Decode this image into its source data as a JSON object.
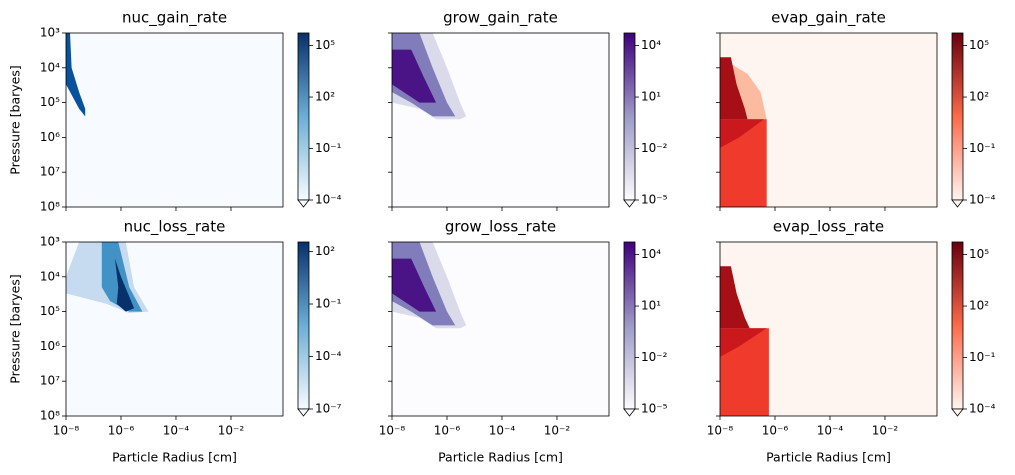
{
  "chart_data": [
    {
      "type": "contour",
      "title": "nuc_gain_rate",
      "ylabel": "Pressure [baryes]",
      "log": true,
      "xlim": [
        1e-08,
        0.78
      ],
      "ylim": [
        100000000,
        1000
      ],
      "xticks": [
        1e-08,
        1e-06,
        0.0001,
        0.01
      ],
      "yticks": [
        {
          "value": 1000,
          "label": "10³"
        },
        {
          "value": 10000,
          "label": "10⁴"
        },
        {
          "value": 100000,
          "label": "10⁵"
        },
        {
          "value": 1000000,
          "label": "10⁶"
        },
        {
          "value": 10000000,
          "label": "10⁷"
        },
        {
          "value": 100000000,
          "label": "10⁸"
        }
      ],
      "background": "#f7fbff",
      "cmap": [
        "#f7fbff",
        "#6baed6",
        "#08306b"
      ],
      "clim": [
        0.0001,
        540000
      ],
      "cticks": [
        {
          "value": 0.0001,
          "label": "10⁻⁴"
        },
        {
          "value": 0.1,
          "label": "10⁻¹"
        },
        {
          "value": 100,
          "label": "10²"
        },
        {
          "value": 100000,
          "label": "10⁵"
        }
      ],
      "regions": [
        {
          "value": 10000,
          "color": "#08519c",
          "x": [
            1e-08,
            1.4e-08,
            1.6e-08,
            3e-08,
            5e-08,
            5e-08,
            3e-08,
            1e-08
          ],
          "y": [
            1000,
            1000,
            10000,
            50000,
            150000,
            250000,
            150000,
            30000
          ]
        }
      ]
    },
    {
      "type": "contour",
      "title": "grow_gain_rate",
      "log": true,
      "xlim": [
        1e-08,
        0.78
      ],
      "ylim": [
        100000000,
        1000
      ],
      "xticks": [
        1e-08,
        1e-06,
        0.0001,
        0.01
      ],
      "yticks": [
        1000,
        10000,
        100000,
        1000000,
        10000000,
        100000000
      ],
      "background": "#fcfbfd",
      "cmap": [
        "#fcfbfd",
        "#9e9ac8",
        "#3f007d"
      ],
      "clim": [
        1e-05,
        54000
      ],
      "cticks": [
        {
          "value": 1e-05,
          "label": "10⁻⁵"
        },
        {
          "value": 0.01,
          "label": "10⁻²"
        },
        {
          "value": 10,
          "label": "10¹"
        },
        {
          "value": 10000,
          "label": "10⁴"
        }
      ],
      "regions": [
        {
          "value": 10,
          "color": "#dadaeb",
          "x": [
            1e-08,
            3e-07,
            1e-06,
            3e-06,
            5e-06,
            3e-06,
            4e-07,
            1e-07,
            1e-08
          ],
          "y": [
            1000,
            1000,
            10000,
            100000,
            250000,
            300000,
            300000,
            150000,
            100000
          ]
        },
        {
          "value": 1000,
          "color": "#807dba",
          "x": [
            1e-08,
            1e-07,
            3e-07,
            1e-06,
            2e-06,
            3e-07,
            5e-08,
            1e-08
          ],
          "y": [
            1000,
            1000,
            10000,
            100000,
            250000,
            250000,
            100000,
            50000
          ]
        },
        {
          "value": 10000,
          "color": "#4a1486",
          "x": [
            1e-08,
            5e-08,
            1.5e-07,
            4e-07,
            1e-07,
            1e-08
          ],
          "y": [
            3000,
            3000,
            20000,
            100000,
            100000,
            30000
          ]
        }
      ]
    },
    {
      "type": "contour",
      "title": "evap_gain_rate",
      "log": true,
      "xlim": [
        1e-08,
        0.78
      ],
      "ylim": [
        100000000,
        1000
      ],
      "xticks": [
        1e-08,
        1e-06,
        0.0001,
        0.01
      ],
      "yticks": [
        1000,
        10000,
        100000,
        1000000,
        10000000,
        100000000
      ],
      "background": "#fff5f0",
      "cmap": [
        "#fff5f0",
        "#fb6a4a",
        "#67000d"
      ],
      "clim": [
        0.0001,
        540000
      ],
      "cticks": [
        {
          "value": 0.0001,
          "label": "10⁻⁴"
        },
        {
          "value": 0.1,
          "label": "10⁻¹"
        },
        {
          "value": 100,
          "label": "10²"
        },
        {
          "value": 100000,
          "label": "10⁵"
        }
      ],
      "regions": [
        {
          "value": 10,
          "color": "#fcbba1",
          "x": [
            1e-08,
            1e-07,
            3e-07,
            5e-07,
            1e-08
          ],
          "y": [
            5000,
            15000,
            50000,
            300000,
            300000
          ]
        },
        {
          "value": 1000,
          "color": "#ef3b2c",
          "x": [
            1e-08,
            5e-07,
            5e-07,
            1e-08
          ],
          "y": [
            300000,
            300000,
            100000000,
            100000000
          ]
        },
        {
          "value": 10000,
          "color": "#cb181d",
          "x": [
            1e-08,
            4e-07,
            5e-08,
            1e-08
          ],
          "y": [
            300000,
            300000,
            1000000,
            2000000
          ]
        },
        {
          "value": 100000,
          "color": "#a50f15",
          "x": [
            1e-08,
            2.5e-08,
            4e-08,
            8e-08,
            1e-07,
            1e-08
          ],
          "y": [
            5000,
            5000,
            30000,
            150000,
            300000,
            300000
          ]
        }
      ]
    },
    {
      "type": "contour",
      "title": "nuc_loss_rate",
      "xlabel": "Particle Radius [cm]",
      "ylabel": "Pressure [baryes]",
      "log": true,
      "xlim": [
        1e-08,
        0.78
      ],
      "ylim": [
        100000000,
        1000
      ],
      "xticks": [
        {
          "value": 1e-08,
          "label": "10⁻⁸"
        },
        {
          "value": 1e-06,
          "label": "10⁻⁶"
        },
        {
          "value": 0.0001,
          "label": "10⁻⁴"
        },
        {
          "value": 0.01,
          "label": "10⁻²"
        }
      ],
      "yticks": [
        {
          "value": 1000,
          "label": "10³"
        },
        {
          "value": 10000,
          "label": "10⁴"
        },
        {
          "value": 100000,
          "label": "10⁵"
        },
        {
          "value": 1000000,
          "label": "10⁶"
        },
        {
          "value": 10000000,
          "label": "10⁷"
        },
        {
          "value": 100000000,
          "label": "10⁸"
        }
      ],
      "background": "#f7fbff",
      "cmap": [
        "#f7fbff",
        "#6baed6",
        "#08306b"
      ],
      "clim": [
        1e-07,
        350
      ],
      "cticks": [
        {
          "value": 1e-07,
          "label": "10⁻⁷"
        },
        {
          "value": 0.0001,
          "label": "10⁻⁴"
        },
        {
          "value": 0.1,
          "label": "10⁻¹"
        },
        {
          "value": 100,
          "label": "10²"
        }
      ],
      "regions": [
        {
          "value": 0.01,
          "color": "#c6dbef",
          "x": [
            3e-08,
            1.5e-06,
            3e-06,
            1e-05,
            2e-06,
            3e-07,
            1e-08,
            1e-08
          ],
          "y": [
            1000,
            1000,
            20000,
            100000,
            110000,
            60000,
            30000,
            10000
          ]
        },
        {
          "value": 1,
          "color": "#4292c6",
          "x": [
            2e-07,
            8e-07,
            2e-06,
            6e-06,
            2e-06,
            4e-07,
            2e-07
          ],
          "y": [
            1000,
            1000,
            20000,
            100000,
            100000,
            50000,
            20000
          ]
        },
        {
          "value": 100,
          "color": "#08306b",
          "x": [
            6e-07,
            1e-06,
            3e-06,
            1.5e-06,
            7e-07,
            8e-07
          ],
          "y": [
            3000,
            10000,
            80000,
            100000,
            60000,
            20000
          ]
        }
      ]
    },
    {
      "type": "contour",
      "title": "grow_loss_rate",
      "xlabel": "Particle Radius [cm]",
      "log": true,
      "xlim": [
        1e-08,
        0.78
      ],
      "ylim": [
        100000000,
        1000
      ],
      "xticks": [
        {
          "value": 1e-08,
          "label": "10⁻⁸"
        },
        {
          "value": 1e-06,
          "label": "10⁻⁶"
        },
        {
          "value": 0.0001,
          "label": "10⁻⁴"
        },
        {
          "value": 0.01,
          "label": "10⁻²"
        }
      ],
      "yticks": [
        1000,
        10000,
        100000,
        1000000,
        10000000,
        100000000
      ],
      "background": "#fcfbfd",
      "cmap": [
        "#fcfbfd",
        "#9e9ac8",
        "#3f007d"
      ],
      "clim": [
        1e-05,
        54000
      ],
      "cticks": [
        {
          "value": 1e-05,
          "label": "10⁻⁵"
        },
        {
          "value": 0.01,
          "label": "10⁻²"
        },
        {
          "value": 10,
          "label": "10¹"
        },
        {
          "value": 10000,
          "label": "10⁴"
        }
      ],
      "regions": [
        {
          "value": 10,
          "color": "#dadaeb",
          "x": [
            1e-08,
            3e-07,
            1e-06,
            3e-06,
            5e-06,
            3e-06,
            4e-07,
            1e-07,
            1e-08
          ],
          "y": [
            1000,
            1000,
            10000,
            100000,
            250000,
            300000,
            300000,
            150000,
            100000
          ]
        },
        {
          "value": 1000,
          "color": "#807dba",
          "x": [
            1e-08,
            1e-07,
            3e-07,
            1e-06,
            2e-06,
            3e-07,
            5e-08,
            1e-08
          ],
          "y": [
            1000,
            1000,
            10000,
            100000,
            250000,
            250000,
            100000,
            50000
          ]
        },
        {
          "value": 10000,
          "color": "#4a1486",
          "x": [
            1e-08,
            5e-08,
            1.5e-07,
            4e-07,
            1e-07,
            1e-08
          ],
          "y": [
            3000,
            3000,
            20000,
            100000,
            100000,
            30000
          ]
        }
      ]
    },
    {
      "type": "contour",
      "title": "evap_loss_rate",
      "xlabel": "Particle Radius [cm]",
      "log": true,
      "xlim": [
        1e-08,
        0.78
      ],
      "ylim": [
        100000000,
        1000
      ],
      "xticks": [
        {
          "value": 1e-08,
          "label": "10⁻⁸"
        },
        {
          "value": 1e-06,
          "label": "10⁻⁶"
        },
        {
          "value": 0.0001,
          "label": "10⁻⁴"
        },
        {
          "value": 0.01,
          "label": "10⁻²"
        }
      ],
      "yticks": [
        1000,
        10000,
        100000,
        1000000,
        10000000,
        100000000
      ],
      "background": "#fff5f0",
      "cmap": [
        "#fff5f0",
        "#fb6a4a",
        "#67000d"
      ],
      "clim": [
        0.0001,
        540000
      ],
      "cticks": [
        {
          "value": 0.0001,
          "label": "10⁻⁴"
        },
        {
          "value": 0.1,
          "label": "10⁻¹"
        },
        {
          "value": 100,
          "label": "10²"
        },
        {
          "value": 100000,
          "label": "10⁵"
        }
      ],
      "regions": [
        {
          "value": 1000,
          "color": "#ef3b2c",
          "x": [
            1e-08,
            6e-07,
            6e-07,
            1e-08
          ],
          "y": [
            300000,
            300000,
            100000000,
            100000000
          ]
        },
        {
          "value": 10000,
          "color": "#cb181d",
          "x": [
            1e-08,
            5e-07,
            5e-08,
            1e-08
          ],
          "y": [
            300000,
            300000,
            1000000,
            2000000
          ]
        },
        {
          "value": 100000,
          "color": "#a50f15",
          "x": [
            1e-08,
            2.5e-08,
            4e-08,
            8e-08,
            1.2e-07,
            1e-08
          ],
          "y": [
            5000,
            5000,
            30000,
            150000,
            300000,
            300000
          ]
        }
      ]
    }
  ]
}
